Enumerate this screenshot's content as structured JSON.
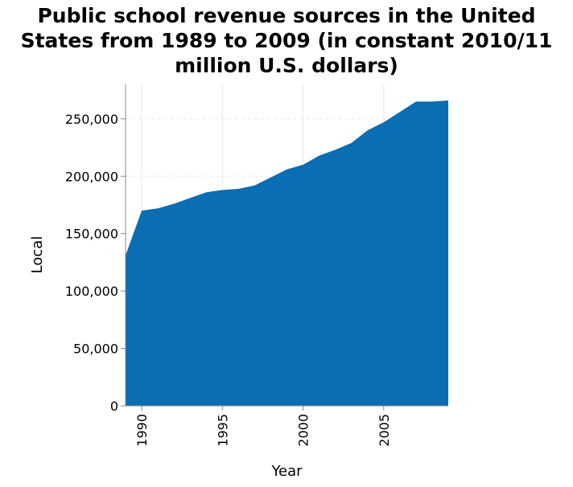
{
  "chart_data": {
    "type": "area",
    "title_lines": [
      "Public school revenue sources in the United",
      "States from 1989 to 2009 (in constant 2010/11",
      "million U.S. dollars)"
    ],
    "xlabel": "Year",
    "ylabel": "Local",
    "xlim": [
      1989,
      2009
    ],
    "ylim": [
      0,
      280000
    ],
    "x_ticks": [
      1990,
      1995,
      2000,
      2005
    ],
    "x_tick_labels": [
      "1990",
      "1995",
      "2000",
      "2005"
    ],
    "y_ticks": [
      0,
      50000,
      100000,
      150000,
      200000,
      250000
    ],
    "y_tick_labels": [
      "0",
      "50,000",
      "100,000",
      "150,000",
      "200,000",
      "250,000"
    ],
    "grid": true,
    "color": "#0b6db3",
    "series": [
      {
        "x": [
          1989,
          1990,
          1991,
          1992,
          1993,
          1994,
          1995,
          1996,
          1997,
          1998,
          1999,
          2000,
          2001,
          2002,
          2003,
          2004,
          2005,
          2006,
          2007,
          2008,
          2009
        ],
        "values": [
          131000,
          170000,
          172000,
          176000,
          181000,
          186000,
          188000,
          189000,
          192000,
          199000,
          206000,
          210000,
          218000,
          223000,
          229000,
          240000,
          247000,
          256000,
          265000,
          265000,
          266000
        ]
      }
    ]
  }
}
